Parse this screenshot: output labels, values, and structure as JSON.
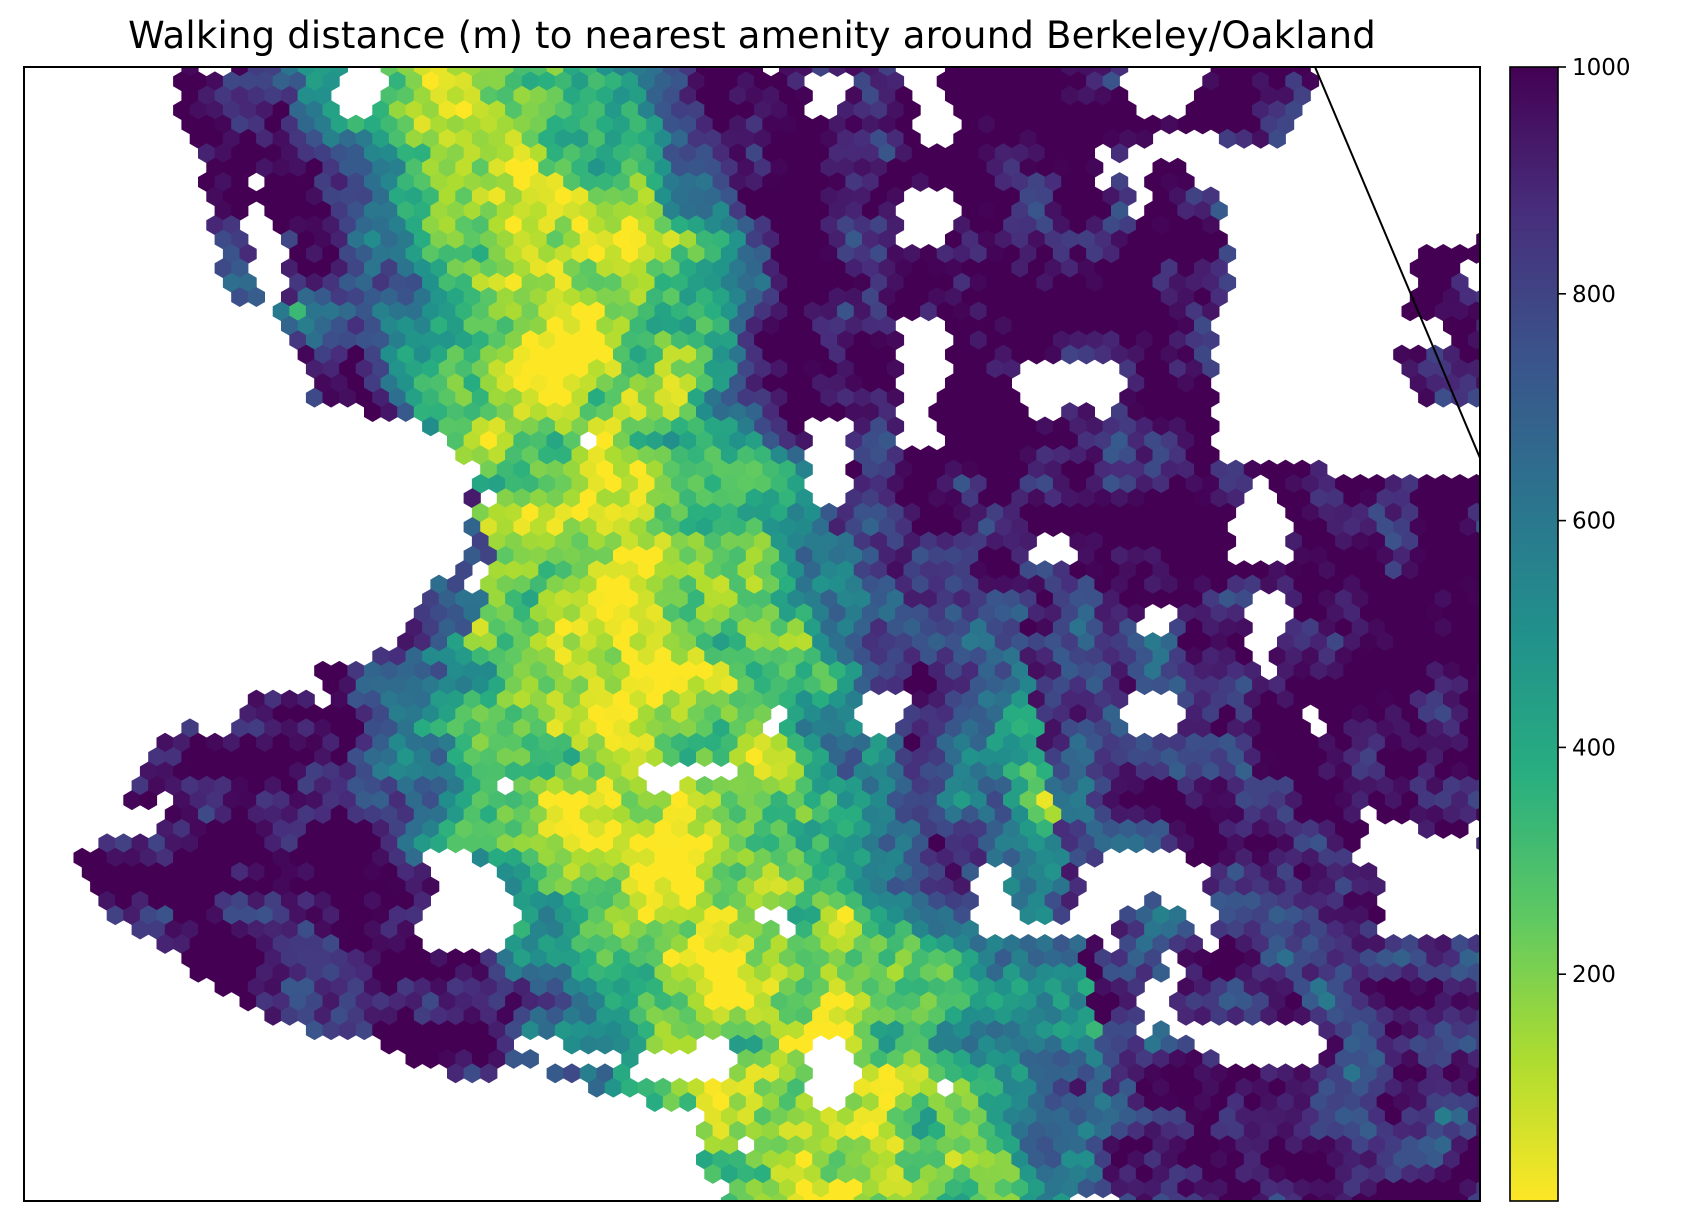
{
  "chart_data": {
    "type": "heatmap",
    "subtype": "hexbin-map",
    "title": "Walking distance (m) to nearest amenity around Berkeley/Oakland",
    "xlabel": "",
    "ylabel": "",
    "axes_ticks": "none",
    "colorbar": {
      "colormap": "viridis (reversed: yellow = low, purple = high)",
      "range": [
        0,
        1000
      ],
      "ticks": [
        "200",
        "400",
        "600",
        "800",
        "1000"
      ],
      "tick_values": [
        200,
        400,
        600,
        800,
        1000
      ],
      "placement": "right"
    },
    "value_pattern": {
      "low_distance_corridor": "north–south band through the center/west of the city (yellow-green)",
      "high_distance_areas": "western fringe and eastern hills (purple, ~1000 m)",
      "empty_areas": "scattered gaps with no data (white)"
    },
    "annotations": [
      "diagonal boundary line in the top-right corner"
    ],
    "colors": {
      "low": "#fde725",
      "mid": "#21918c",
      "high": "#440154",
      "frame": "#000000"
    }
  }
}
